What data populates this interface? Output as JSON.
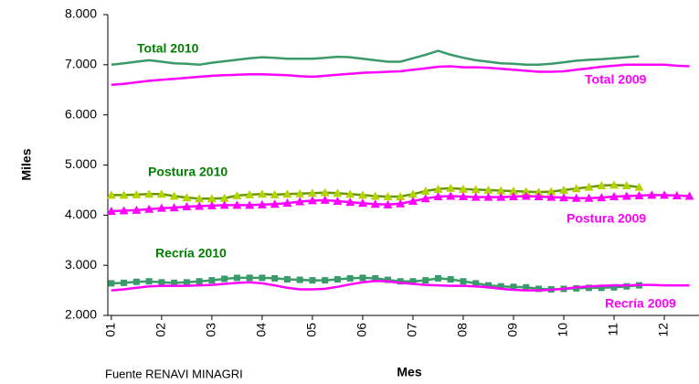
{
  "chart_data": {
    "type": "line",
    "y_label": "Miles",
    "x_label": "Mes",
    "source": "Fuente RENAVI MINAGRI",
    "xlim": [
      0.93,
      12.69
    ],
    "xticks": [
      {
        "value": 1,
        "label": "01"
      },
      {
        "value": 2,
        "label": "02"
      },
      {
        "value": 3,
        "label": "03"
      },
      {
        "value": 4,
        "label": "04"
      },
      {
        "value": 5,
        "label": "05"
      },
      {
        "value": 6,
        "label": "06"
      },
      {
        "value": 7,
        "label": "07"
      },
      {
        "value": 8,
        "label": "08"
      },
      {
        "value": 9,
        "label": "09"
      },
      {
        "value": 10,
        "label": "10"
      },
      {
        "value": 11,
        "label": "11"
      },
      {
        "value": 12,
        "label": "12"
      }
    ],
    "ylim": [
      2000,
      8000
    ],
    "yticks": [
      {
        "value": 2000,
        "label": "2.000"
      },
      {
        "value": 3000,
        "label": "3.000"
      },
      {
        "value": 4000,
        "label": "4.000"
      },
      {
        "value": 5000,
        "label": "5.000"
      },
      {
        "value": 6000,
        "label": "6.000"
      },
      {
        "value": 7000,
        "label": "7.000"
      },
      {
        "value": 8000,
        "label": "8.000"
      }
    ],
    "grid": false,
    "x": [
      1,
      1.25,
      1.5,
      1.75,
      2,
      2.25,
      2.5,
      2.75,
      3,
      3.25,
      3.5,
      3.75,
      4,
      4.25,
      4.5,
      4.75,
      5,
      5.25,
      5.5,
      5.75,
      6,
      6.25,
      6.5,
      6.75,
      7,
      7.25,
      7.5,
      7.75,
      8,
      8.25,
      8.5,
      8.75,
      9,
      9.25,
      9.5,
      9.75,
      10,
      10.25,
      10.5,
      10.75,
      11,
      11.25,
      11.5,
      11.75,
      12,
      12.25,
      12.5
    ],
    "series": [
      {
        "name": "Total 2010",
        "color": "#3a9a6a",
        "label_color": "#008000",
        "marker": "none",
        "values": [
          7000,
          7030,
          7060,
          7090,
          7060,
          7030,
          7020,
          7000,
          7040,
          7070,
          7100,
          7130,
          7150,
          7140,
          7120,
          7120,
          7120,
          7140,
          7160,
          7150,
          7120,
          7090,
          7060,
          7060,
          7130,
          7200,
          7280,
          7200,
          7140,
          7090,
          7060,
          7030,
          7020,
          7000,
          7000,
          7020,
          7050,
          7080,
          7100,
          7110,
          7130,
          7150,
          7170,
          null,
          null,
          null,
          null
        ]
      },
      {
        "name": "Total 2009",
        "color": "#ff00ff",
        "label_color": "#ff00ff",
        "marker": "none",
        "values": [
          6600,
          6620,
          6650,
          6680,
          6700,
          6720,
          6740,
          6760,
          6780,
          6790,
          6800,
          6810,
          6810,
          6800,
          6790,
          6770,
          6760,
          6780,
          6800,
          6820,
          6840,
          6850,
          6860,
          6870,
          6900,
          6930,
          6960,
          6970,
          6950,
          6950,
          6940,
          6920,
          6900,
          6880,
          6860,
          6860,
          6870,
          6900,
          6930,
          6960,
          6980,
          7000,
          7000,
          7000,
          7000,
          6980,
          6970
        ]
      },
      {
        "name": "Postura 2010",
        "color": "#669900",
        "marker_color": "#b5d300",
        "label_color": "#008000",
        "marker": "triangle",
        "values": [
          4400,
          4400,
          4410,
          4420,
          4420,
          4380,
          4350,
          4330,
          4330,
          4340,
          4390,
          4410,
          4420,
          4410,
          4420,
          4430,
          4440,
          4450,
          4440,
          4420,
          4400,
          4380,
          4370,
          4370,
          4420,
          4480,
          4520,
          4540,
          4520,
          4510,
          4500,
          4490,
          4480,
          4470,
          4460,
          4470,
          4500,
          4530,
          4560,
          4590,
          4600,
          4590,
          4560,
          null,
          null,
          null,
          null
        ]
      },
      {
        "name": "Postura 2009",
        "color": "#ff00ff",
        "marker_color": "#ff00ff",
        "label_color": "#ff00ff",
        "marker": "triangle",
        "values": [
          4080,
          4090,
          4100,
          4120,
          4140,
          4150,
          4170,
          4180,
          4190,
          4200,
          4200,
          4200,
          4210,
          4220,
          4240,
          4270,
          4290,
          4300,
          4280,
          4260,
          4240,
          4220,
          4210,
          4230,
          4280,
          4330,
          4370,
          4380,
          4370,
          4360,
          4360,
          4360,
          4370,
          4380,
          4370,
          4360,
          4350,
          4340,
          4340,
          4350,
          4370,
          4380,
          4390,
          4400,
          4400,
          4390,
          4380
        ]
      },
      {
        "name": "Recría 2010",
        "color": "#3a9a6a",
        "marker_color": "#3a9a6a",
        "label_color": "#008000",
        "marker": "square",
        "values": [
          2640,
          2650,
          2670,
          2680,
          2660,
          2650,
          2660,
          2680,
          2700,
          2730,
          2750,
          2750,
          2750,
          2740,
          2720,
          2710,
          2700,
          2700,
          2720,
          2740,
          2750,
          2740,
          2710,
          2680,
          2680,
          2700,
          2740,
          2720,
          2680,
          2640,
          2600,
          2580,
          2570,
          2560,
          2530,
          2520,
          2530,
          2540,
          2550,
          2550,
          2560,
          2580,
          2600,
          null,
          null,
          null,
          null
        ]
      },
      {
        "name": "Recría 2009",
        "color": "#ff00ff",
        "label_color": "#ff00ff",
        "marker": "none",
        "values": [
          2500,
          2520,
          2550,
          2580,
          2590,
          2590,
          2590,
          2600,
          2610,
          2630,
          2650,
          2660,
          2640,
          2600,
          2550,
          2520,
          2520,
          2530,
          2570,
          2620,
          2660,
          2690,
          2680,
          2650,
          2630,
          2610,
          2600,
          2590,
          2590,
          2580,
          2560,
          2530,
          2510,
          2500,
          2500,
          2510,
          2530,
          2560,
          2580,
          2590,
          2600,
          2600,
          2610,
          2610,
          2600,
          2600,
          2600
        ]
      }
    ]
  }
}
